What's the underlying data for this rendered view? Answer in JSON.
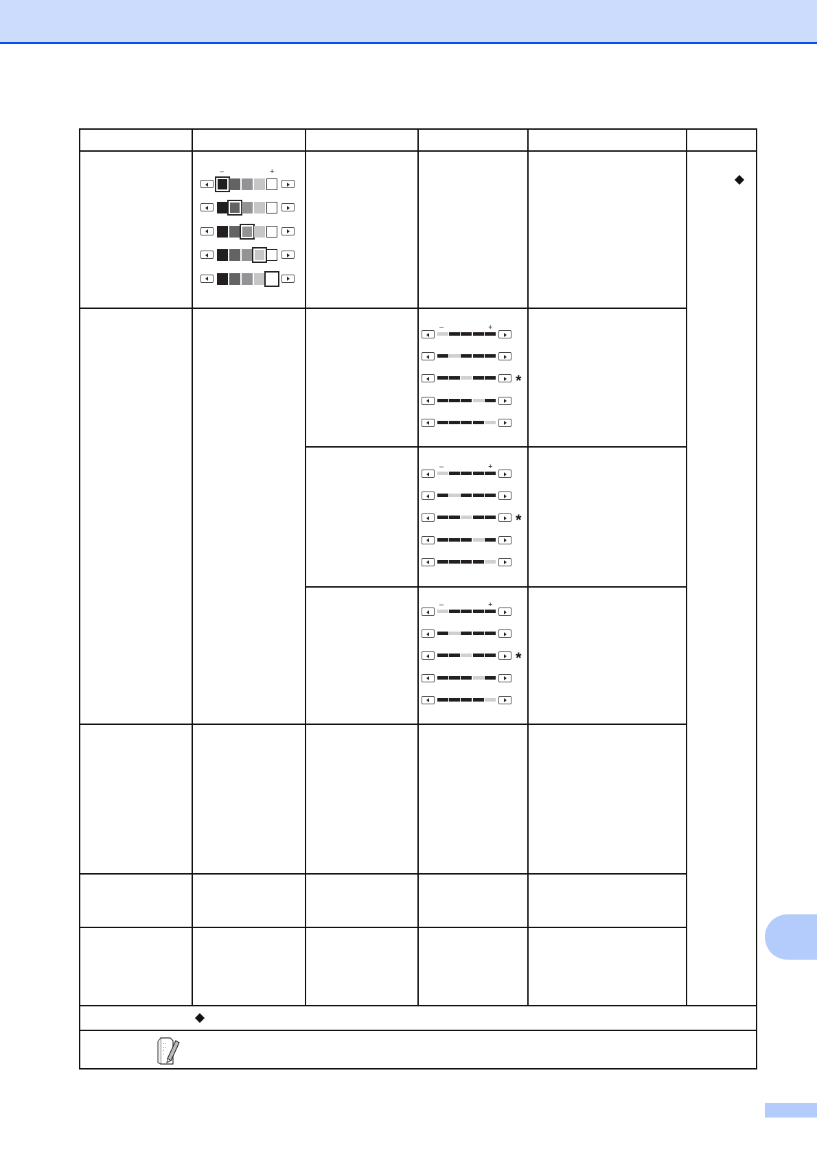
{
  "colors": {
    "header_band": "#ccdcfc",
    "header_line": "#0a50f0",
    "side_tab": "#b3ccfb"
  },
  "color_scale": {
    "minus_label": "–",
    "plus_label": "+",
    "shades": [
      "#231f20",
      "#636365",
      "#939395",
      "#c6c6c8",
      "#ffffff"
    ],
    "selected_per_row": [
      0,
      1,
      2,
      3,
      4
    ]
  },
  "bar_sliders": [
    {
      "minus_label": "–",
      "plus_label": "+",
      "selected_per_row": [
        0,
        1,
        2,
        3,
        4
      ],
      "default_row": 2,
      "default_mark": "*"
    },
    {
      "minus_label": "–",
      "plus_label": "+",
      "selected_per_row": [
        0,
        1,
        2,
        3,
        4
      ],
      "default_row": 2,
      "default_mark": "*"
    },
    {
      "minus_label": "–",
      "plus_label": "+",
      "selected_per_row": [
        0,
        1,
        2,
        3,
        4
      ],
      "default_row": 2,
      "default_mark": "*"
    }
  ],
  "icons": {
    "diamond": "diamond-icon",
    "note": "note-pencil-icon",
    "left": "arrow-left-icon",
    "right": "arrow-right-icon"
  }
}
